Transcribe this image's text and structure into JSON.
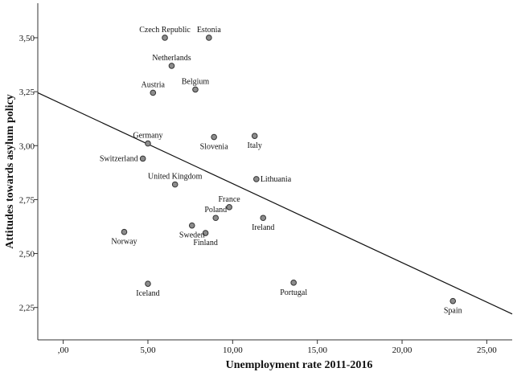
{
  "chart_data": {
    "type": "scatter",
    "xlabel": "Unemployment rate 2011-2016",
    "ylabel": "Attitudes towards asylum policy",
    "xlim": [
      -1.5,
      26.5
    ],
    "ylim": [
      2.1,
      3.66
    ],
    "x_ticks": [
      {
        "value": 0,
        "label": ",00"
      },
      {
        "value": 5,
        "label": "5,00"
      },
      {
        "value": 10,
        "label": "10,00"
      },
      {
        "value": 15,
        "label": "15,00"
      },
      {
        "value": 20,
        "label": "20,00"
      },
      {
        "value": 25,
        "label": "25,00"
      }
    ],
    "y_ticks": [
      {
        "value": 2.25,
        "label": "2,25"
      },
      {
        "value": 2.5,
        "label": "2,50"
      },
      {
        "value": 2.75,
        "label": "2,75"
      },
      {
        "value": 3.0,
        "label": "3,00"
      },
      {
        "value": 3.25,
        "label": "3,25"
      },
      {
        "value": 3.5,
        "label": "3,50"
      }
    ],
    "grid": false,
    "legend": "none",
    "points": [
      {
        "label": "Czech Republic",
        "x": 6.0,
        "y": 3.5,
        "label_pos": "above"
      },
      {
        "label": "Estonia",
        "x": 8.6,
        "y": 3.5,
        "label_pos": "above"
      },
      {
        "label": "Netherlands",
        "x": 6.4,
        "y": 3.37,
        "label_pos": "above"
      },
      {
        "label": "Austria",
        "x": 5.3,
        "y": 3.245,
        "label_pos": "above"
      },
      {
        "label": "Belgium",
        "x": 7.8,
        "y": 3.26,
        "label_pos": "above"
      },
      {
        "label": "Germany",
        "x": 5.0,
        "y": 3.01,
        "label_pos": "above"
      },
      {
        "label": "Switzerland",
        "x": 4.7,
        "y": 2.94,
        "label_pos": "left"
      },
      {
        "label": "Slovenia",
        "x": 8.9,
        "y": 3.04,
        "label_pos": "below"
      },
      {
        "label": "Italy",
        "x": 11.3,
        "y": 3.045,
        "label_pos": "below"
      },
      {
        "label": "United Kingdom",
        "x": 6.6,
        "y": 2.82,
        "label_pos": "above"
      },
      {
        "label": "Lithuania",
        "x": 11.4,
        "y": 2.845,
        "label_pos": "right"
      },
      {
        "label": "France",
        "x": 9.8,
        "y": 2.715,
        "label_pos": "above"
      },
      {
        "label": "Poland",
        "x": 9.0,
        "y": 2.665,
        "label_pos": "above"
      },
      {
        "label": "Sweden",
        "x": 7.6,
        "y": 2.63,
        "label_pos": "below"
      },
      {
        "label": "Finland",
        "x": 8.4,
        "y": 2.595,
        "label_pos": "below"
      },
      {
        "label": "Ireland",
        "x": 11.8,
        "y": 2.665,
        "label_pos": "below"
      },
      {
        "label": "Norway",
        "x": 3.6,
        "y": 2.6,
        "label_pos": "below"
      },
      {
        "label": "Iceland",
        "x": 5.0,
        "y": 2.36,
        "label_pos": "below"
      },
      {
        "label": "Portugal",
        "x": 13.6,
        "y": 2.365,
        "label_pos": "below"
      },
      {
        "label": "Spain",
        "x": 23.0,
        "y": 2.28,
        "label_pos": "below"
      }
    ],
    "trend_line": {
      "x1": -1.5,
      "y1": 3.245,
      "x2": 26.5,
      "y2": 2.22
    }
  }
}
